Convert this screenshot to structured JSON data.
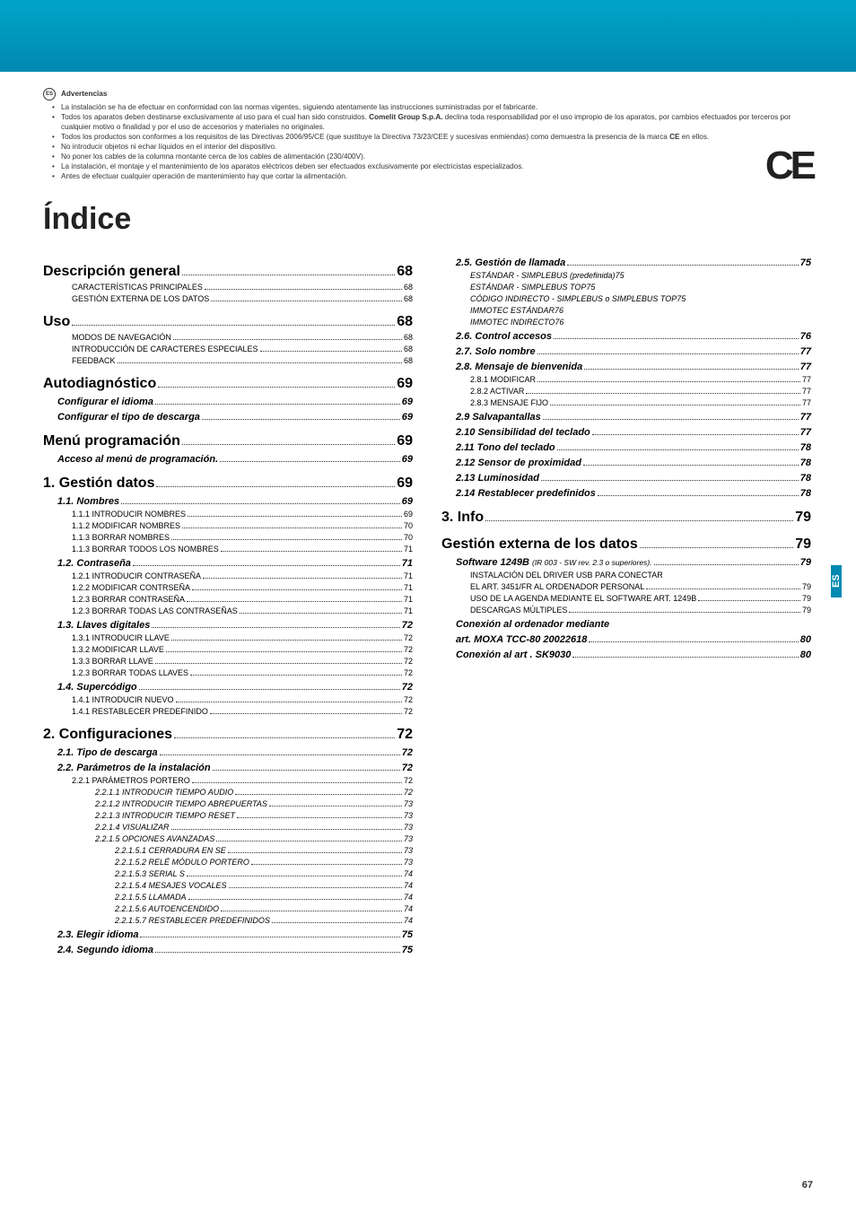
{
  "lang_badge": "ES",
  "warnings_title": "Advertencias",
  "warnings": [
    {
      "t": "La instalación se ha de efectuar en conformidad con las normas vigentes, siguiendo atentamente las instrucciones suministradas por el fabricante."
    },
    {
      "t": "Todos los aparatos deben destinarse exclusivamente al uso para el cual han sido construidos. ",
      "b": "Comelit Group S.p.A.",
      "t2": " declina toda responsabilidad por el uso impropio de los aparatos, por cambios efectuados por terceros por cualquier motivo o finalidad y por el uso de accesorios y materiales no originales."
    },
    {
      "t": "Todos los productos son conformes a los requisitos de las Directivas 2006/95/CE (que sustituye la Directiva 73/23/CEE y sucesivas enmiendas) como demuestra la presencia de la marca ",
      "b": "CE",
      "t2": " en ellos."
    },
    {
      "t": "No introducir objetos ni echar líquidos en el interior del dispositivo."
    },
    {
      "t": "No poner los cables de la columna montante cerca de los cables de alimentación (230/400V)."
    },
    {
      "t": "La instalación, el montaje y el mantenimiento de los aparatos eléctricos deben ser efectuados exclusivamente por electricistas especializados."
    },
    {
      "t": "Antes de efectuar cualquier operación de mantenimiento hay que cortar la alimentación."
    }
  ],
  "ce": "CE",
  "title": "Índice",
  "side_tab": "ES",
  "page_number": "67",
  "col1": [
    {
      "lvl": "h1",
      "t": "Descripción general",
      "pg": "68"
    },
    {
      "lvl": "h3",
      "t": "CARACTERÍSTICAS PRINCIPALES",
      "pg": "68"
    },
    {
      "lvl": "h3",
      "t": "GESTIÓN EXTERNA DE LOS DATOS",
      "pg": "68"
    },
    {
      "lvl": "h1",
      "t": "Uso",
      "pg": "68"
    },
    {
      "lvl": "h3",
      "t": "MODOS DE NAVEGACIÓN",
      "pg": "68"
    },
    {
      "lvl": "h3",
      "t": "INTRODUCCIÓN DE CARACTERES ESPECIALES",
      "pg": "68"
    },
    {
      "lvl": "h3",
      "t": "FEEDBACK",
      "pg": "68"
    },
    {
      "lvl": "h1",
      "t": "Autodiagnóstico",
      "pg": "69"
    },
    {
      "lvl": "h2",
      "t": "Configurar el idioma",
      "pg": "69"
    },
    {
      "lvl": "h2",
      "t": "Configurar el tipo de descarga",
      "pg": "69"
    },
    {
      "lvl": "h1",
      "t": "Menú programación",
      "pg": "69"
    },
    {
      "lvl": "h2",
      "t": "Acceso al menú de programación.",
      "pg": "69"
    },
    {
      "lvl": "h1",
      "t": "1. Gestión datos",
      "pg": "69"
    },
    {
      "lvl": "h2",
      "t": "1.1. Nombres",
      "pg": "69"
    },
    {
      "lvl": "h3",
      "t": "1.1.1 INTRODUCIR NOMBRES",
      "pg": "69"
    },
    {
      "lvl": "h3",
      "t": "1.1.2 MODIFICAR NOMBRES",
      "pg": "70"
    },
    {
      "lvl": "h3",
      "t": "1.1.3 BORRAR NOMBRES",
      "pg": "70"
    },
    {
      "lvl": "h3",
      "t": "1.1.3 BORRAR TODOS LOS NOMBRES",
      "pg": "71"
    },
    {
      "lvl": "h2",
      "t": "1.2. Contraseña",
      "pg": "71"
    },
    {
      "lvl": "h3",
      "t": "1.2.1 INTRODUCIR CONTRASEÑA",
      "pg": "71"
    },
    {
      "lvl": "h3",
      "t": "1.2.2 MODIFICAR CONTRSEÑA",
      "pg": "71"
    },
    {
      "lvl": "h3",
      "t": "1.2.3 BORRAR CONTRASEÑA",
      "pg": "71"
    },
    {
      "lvl": "h3",
      "t": "1.2.3 BORRAR TODAS LAS CONTRASEÑAS",
      "pg": "71"
    },
    {
      "lvl": "h2",
      "t": "1.3. Llaves digitales",
      "pg": "72"
    },
    {
      "lvl": "h3",
      "t": "1.3.1 INTRODUCIR LLAVE",
      "pg": "72"
    },
    {
      "lvl": "h3",
      "t": "1.3.2 MODIFICAR LLAVE",
      "pg": "72"
    },
    {
      "lvl": "h3",
      "t": "1.3.3 BORRAR LLAVE",
      "pg": "72"
    },
    {
      "lvl": "h3",
      "t": "1.2.3 BORRAR TODAS LLAVES",
      "pg": "72"
    },
    {
      "lvl": "h2",
      "t": "1.4. Supercódigo",
      "pg": "72"
    },
    {
      "lvl": "h3",
      "t": "1.4.1 INTRODUCIR NUEVO",
      "pg": "72"
    },
    {
      "lvl": "h3",
      "t": "1.4.1 RESTABLECER PREDEFINIDO",
      "pg": "72"
    },
    {
      "lvl": "h1",
      "t": "2. Configuraciones",
      "pg": "72"
    },
    {
      "lvl": "h2",
      "t": "2.1. Tipo de descarga",
      "pg": "72"
    },
    {
      "lvl": "h2",
      "t": "2.2. Parámetros de la instalación",
      "pg": "72"
    },
    {
      "lvl": "h3",
      "t": "2.2.1 PARÁMETROS PORTERO",
      "pg": "72"
    },
    {
      "lvl": "h4",
      "t": "2.2.1.1 INTRODUCIR TIEMPO AUDIO",
      "pg": "72"
    },
    {
      "lvl": "h4",
      "t": "2.2.1.2 INTRODUCIR TIEMPO ABREPUERTAS",
      "pg": "73"
    },
    {
      "lvl": "h4",
      "t": "2.2.1.3 INTRODUCIR TIEMPO RESET",
      "pg": "73"
    },
    {
      "lvl": "h4",
      "t": "2.2.1.4 VISUALIZAR",
      "pg": "73"
    },
    {
      "lvl": "h4",
      "t": "2.2.1.5 OPCIONES AVANZADAS",
      "pg": "73"
    },
    {
      "lvl": "h5",
      "t": "2.2.1.5.1 CERRADURA EN SE",
      "pg": "73"
    },
    {
      "lvl": "h5",
      "t": "2.2.1.5.2 RELÉ MÓDULO PORTERO",
      "pg": "73"
    },
    {
      "lvl": "h5",
      "t": "2.2.1.5.3 SERIAL S",
      "pg": "74"
    },
    {
      "lvl": "h5",
      "t": "2.2.1.5.4 MESAJES VOCALES",
      "pg": "74"
    },
    {
      "lvl": "h5",
      "t": "2.2.1.5.5 LLAMADA",
      "pg": "74"
    },
    {
      "lvl": "h5",
      "t": "2.2.1.5.6 AUTOENCENDIDO",
      "pg": "74"
    },
    {
      "lvl": "h5",
      "t": "2.2.1.5.7 RESTABLECER PREDEFINIDOS",
      "pg": "74"
    },
    {
      "lvl": "h2",
      "t": "2.3. Elegir idioma",
      "pg": "75"
    },
    {
      "lvl": "h2",
      "t": "2.4. Segundo idioma",
      "pg": "75"
    }
  ],
  "col2": [
    {
      "lvl": "h2",
      "t": "2.5. Gestión de llamada",
      "pg": "75"
    },
    {
      "lvl": "h3i",
      "t": "ESTÁNDAR - SIMPLEBUS (predefinida)",
      "pg": "75"
    },
    {
      "lvl": "h3i",
      "t": "ESTÁNDAR - SIMPLEBUS TOP",
      "pg": "75"
    },
    {
      "lvl": "h3i",
      "t": "CÓDIGO INDIRECTO - SIMPLEBUS o SIMPLEBUS TOP",
      "pg": "75"
    },
    {
      "lvl": "h3i",
      "t": "IMMOTEC ESTÁNDAR",
      "pg": "76"
    },
    {
      "lvl": "h3i",
      "t": "IMMOTEC INDIRECTO",
      "pg": "76"
    },
    {
      "lvl": "h2",
      "t": "2.6. Control accesos",
      "pg": "76"
    },
    {
      "lvl": "h2",
      "t": "2.7. Solo nombre",
      "pg": "77"
    },
    {
      "lvl": "h2",
      "t": "2.8. Mensaje de bienvenida",
      "pg": "77"
    },
    {
      "lvl": "h3",
      "t": "2.8.1 MODIFICAR",
      "pg": "77"
    },
    {
      "lvl": "h3",
      "t": "2.8.2 ACTIVAR",
      "pg": "77"
    },
    {
      "lvl": "h3",
      "t": "2.8.3 MENSAJE FIJO",
      "pg": "77"
    },
    {
      "lvl": "h2",
      "t": "2.9 Salvapantallas",
      "pg": "77"
    },
    {
      "lvl": "h2",
      "t": "2.10 Sensibilidad del teclado",
      "pg": "77"
    },
    {
      "lvl": "h2",
      "t": "2.11 Tono del teclado",
      "pg": "78"
    },
    {
      "lvl": "h2",
      "t": "2.12 Sensor de proximidad",
      "pg": "78"
    },
    {
      "lvl": "h2",
      "t": "2.13 Luminosidad",
      "pg": "78"
    },
    {
      "lvl": "h2",
      "t": "2.14 Restablecer predefinidos",
      "pg": "78"
    },
    {
      "lvl": "h1",
      "t": "3. Info",
      "pg": "79"
    },
    {
      "lvl": "h1",
      "t": "Gestión externa de los datos",
      "pg": "79"
    },
    {
      "lvl": "h2sub",
      "t": "Software 1249B ",
      "sub": "(IR 003 - SW rev. 2.3 o superiores).",
      "pg": "79"
    },
    {
      "lvl": "h3",
      "t": "INSTALACIÓN DEL DRIVER USB PARA CONECTAR",
      "pg": ""
    },
    {
      "lvl": "h3",
      "t": "EL ART. 3451/FR AL ORDENADOR PERSONAL",
      "pg": "79"
    },
    {
      "lvl": "h3",
      "t": "USO DE LA AGENDA MEDIANTE EL SOFTWARE ART. 1249B",
      "pg": "79"
    },
    {
      "lvl": "h3",
      "t": "DESCARGAS MÚLTIPLES",
      "pg": "79"
    },
    {
      "lvl": "h2plain",
      "t": "Conexión al ordenador mediante"
    },
    {
      "lvl": "h2",
      "t": "art. MOXA TCC-80 20022618",
      "pg": "80"
    },
    {
      "lvl": "h2",
      "t": "Conexión al art . SK9030",
      "pg": "80"
    }
  ]
}
